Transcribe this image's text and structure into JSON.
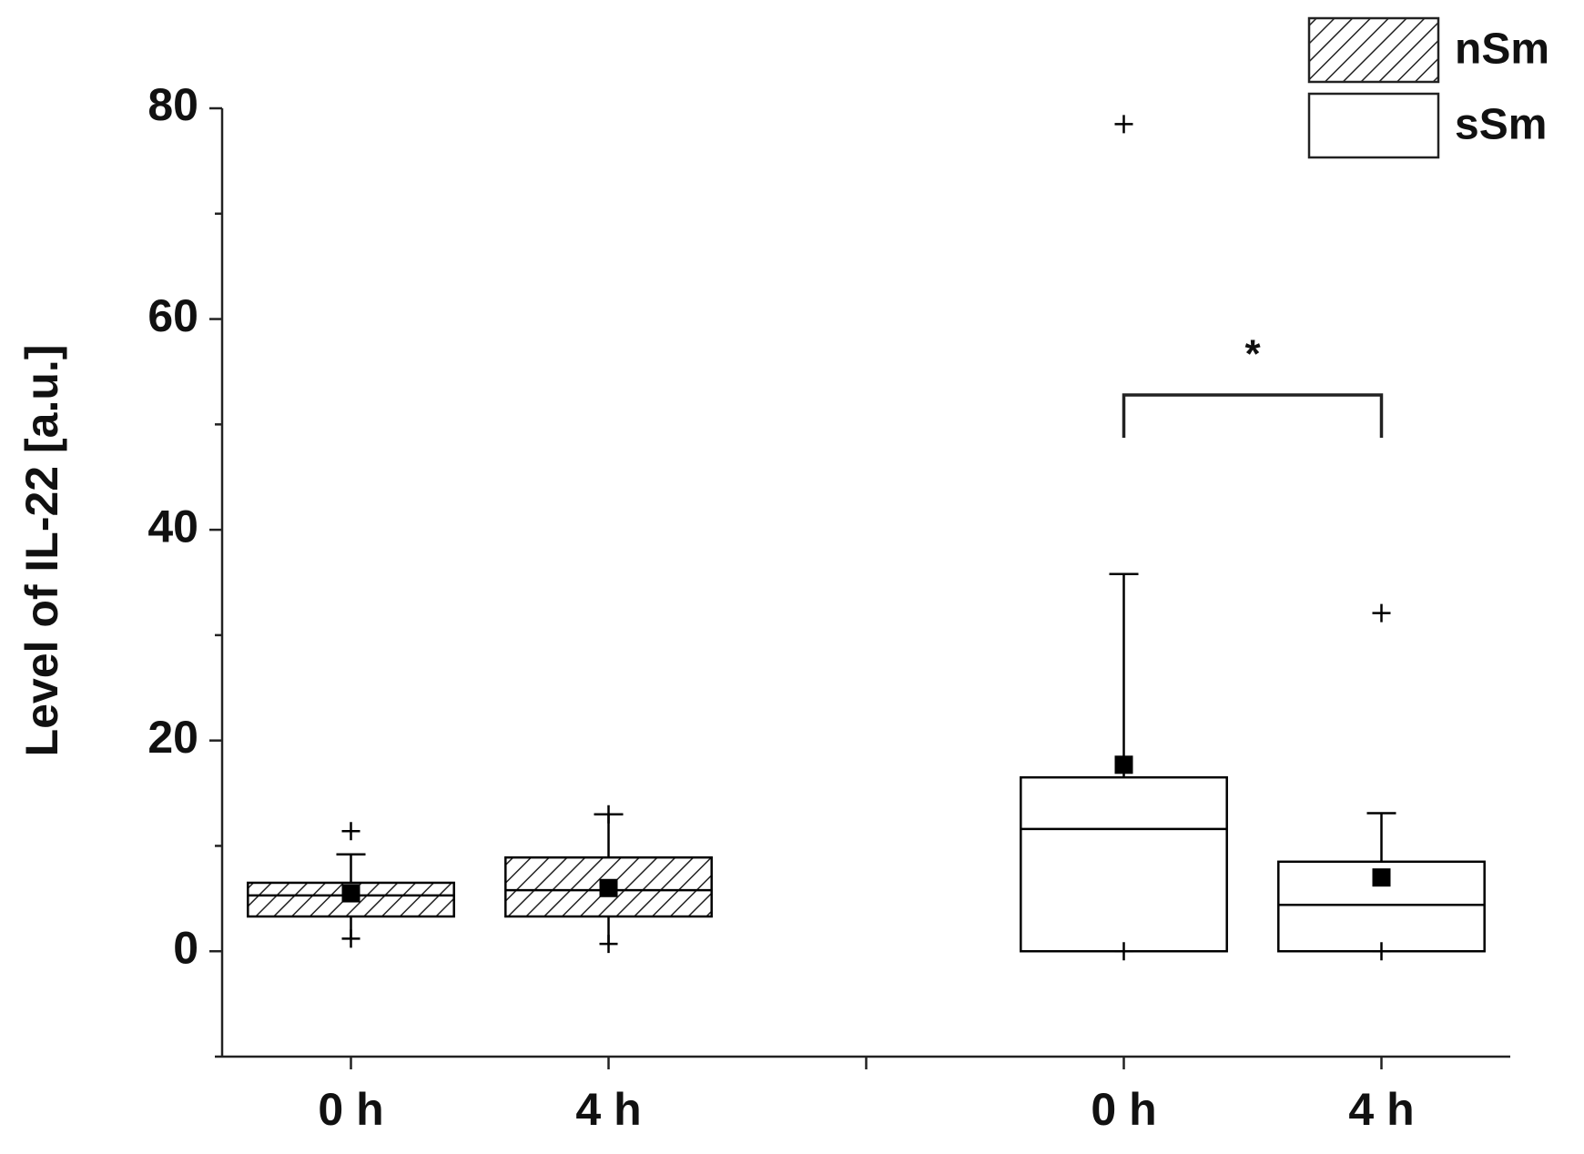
{
  "chart_data": {
    "type": "box",
    "y_label": "Level of IL-22 [a.u.]",
    "categories": [
      "0 h",
      "4 h",
      null,
      "0 h",
      "4 h"
    ],
    "ylim": [
      -10,
      80
    ],
    "yticks": [
      0,
      20,
      40,
      60,
      80
    ],
    "yminorticks": [
      -10,
      10,
      30,
      50,
      70
    ],
    "series": [
      {
        "name": "nSm",
        "pattern": "hatch",
        "color": "#000000",
        "q1": [
          3.3,
          3.3,
          null,
          null,
          null
        ],
        "median": [
          5.3,
          5.8,
          null,
          null,
          null
        ],
        "q3": [
          6.5,
          8.9,
          null,
          null,
          null
        ],
        "whisker_low": [
          1.2,
          0.7,
          null,
          null,
          null
        ],
        "whisker_high": [
          9.2,
          13.0,
          null,
          null,
          null
        ],
        "mean": [
          5.5,
          6.0,
          null,
          null,
          null
        ],
        "min": [
          1.2,
          0.7,
          null,
          null,
          null
        ],
        "max": [
          11.4,
          13.0,
          null,
          null,
          null
        ]
      },
      {
        "name": "sSm",
        "pattern": "none",
        "color": "#000000",
        "q1": [
          null,
          null,
          null,
          0,
          0
        ],
        "median": [
          null,
          null,
          null,
          11.6,
          4.4
        ],
        "q3": [
          null,
          null,
          null,
          16.5,
          8.5
        ],
        "whisker_low": [
          null,
          null,
          null,
          0,
          0
        ],
        "whisker_high": [
          null,
          null,
          null,
          35.8,
          13.1
        ],
        "mean": [
          null,
          null,
          null,
          17.7,
          7.0
        ],
        "min": [
          null,
          null,
          null,
          0,
          0
        ],
        "max": [
          null,
          null,
          null,
          78.5,
          32.1
        ]
      }
    ],
    "annotation": {
      "text": "*",
      "from": 3,
      "to": 4
    }
  }
}
